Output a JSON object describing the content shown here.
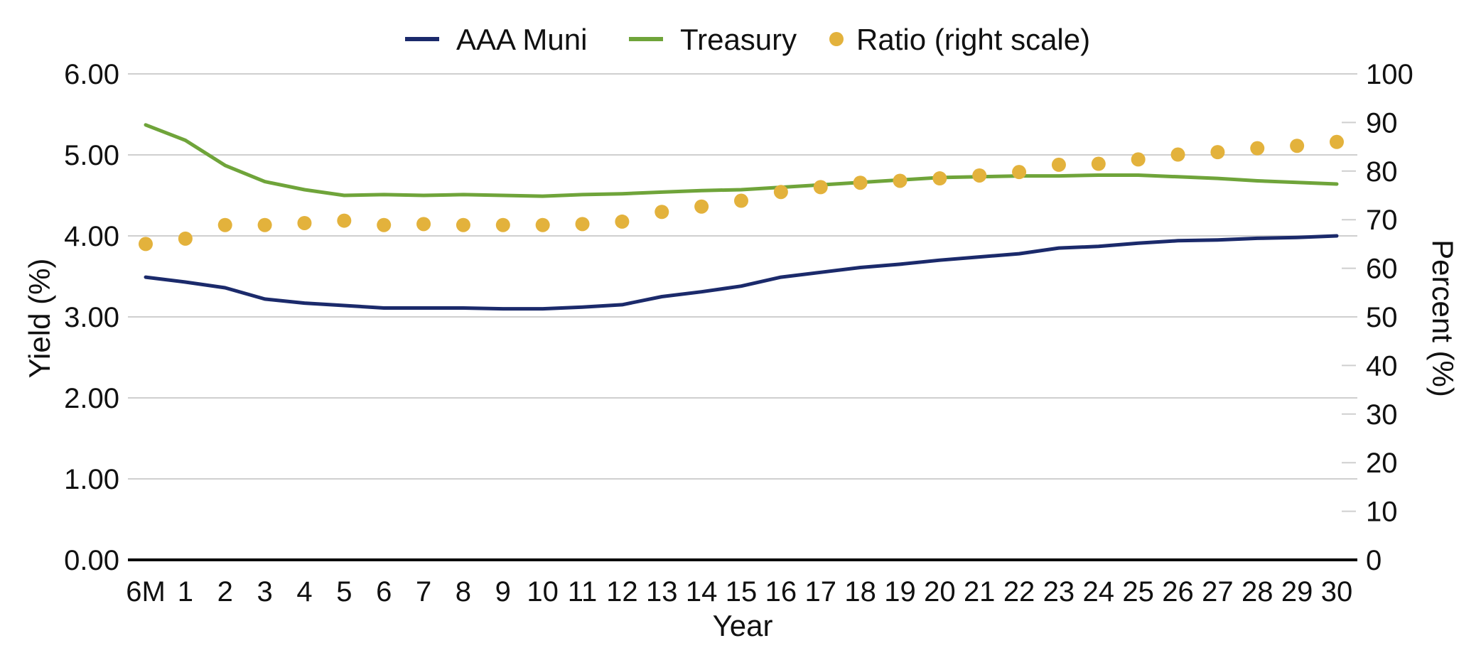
{
  "chart_data": {
    "type": "line",
    "title": "",
    "categories": [
      "6M",
      "1",
      "2",
      "3",
      "4",
      "5",
      "6",
      "7",
      "8",
      "9",
      "10",
      "11",
      "12",
      "13",
      "14",
      "15",
      "16",
      "17",
      "18",
      "19",
      "20",
      "21",
      "22",
      "23",
      "24",
      "25",
      "26",
      "27",
      "28",
      "29",
      "30"
    ],
    "xlabel": "Year",
    "ylabel": "Yield (%)",
    "y2label": "Percent (%)",
    "ylim": [
      0,
      6
    ],
    "y2lim": [
      0,
      100
    ],
    "yticks": [
      "0.00",
      "1.00",
      "2.00",
      "3.00",
      "4.00",
      "5.00",
      "6.00"
    ],
    "y2ticks": [
      "0",
      "10",
      "20",
      "30",
      "40",
      "50",
      "60",
      "70",
      "80",
      "90",
      "100"
    ],
    "grid": true,
    "legend_position": "top",
    "series": [
      {
        "name": "AAA Muni",
        "type": "line",
        "axis": "left",
        "color": "#1b2a6b",
        "values": [
          3.49,
          3.43,
          3.36,
          3.22,
          3.17,
          3.14,
          3.11,
          3.11,
          3.11,
          3.1,
          3.1,
          3.12,
          3.15,
          3.25,
          3.31,
          3.38,
          3.49,
          3.55,
          3.61,
          3.65,
          3.7,
          3.74,
          3.78,
          3.85,
          3.87,
          3.91,
          3.94,
          3.95,
          3.97,
          3.98,
          4.0
        ]
      },
      {
        "name": "Treasury",
        "type": "line",
        "axis": "left",
        "color": "#6fa43a",
        "values": [
          5.37,
          5.18,
          4.87,
          4.67,
          4.57,
          4.5,
          4.51,
          4.5,
          4.51,
          4.5,
          4.49,
          4.51,
          4.52,
          4.54,
          4.56,
          4.57,
          4.6,
          4.63,
          4.66,
          4.69,
          4.72,
          4.73,
          4.74,
          4.74,
          4.75,
          4.75,
          4.73,
          4.71,
          4.68,
          4.66,
          4.64
        ]
      },
      {
        "name": "Ratio (right scale)",
        "type": "scatter",
        "axis": "right",
        "color": "#e3b23c",
        "values": [
          65.0,
          66.1,
          68.9,
          68.9,
          69.3,
          69.8,
          68.9,
          69.1,
          68.9,
          68.9,
          68.9,
          69.1,
          69.6,
          71.6,
          72.7,
          73.9,
          75.7,
          76.7,
          77.6,
          78.0,
          78.5,
          79.1,
          79.8,
          81.3,
          81.5,
          82.4,
          83.4,
          83.9,
          84.7,
          85.2,
          86.0
        ]
      }
    ]
  }
}
